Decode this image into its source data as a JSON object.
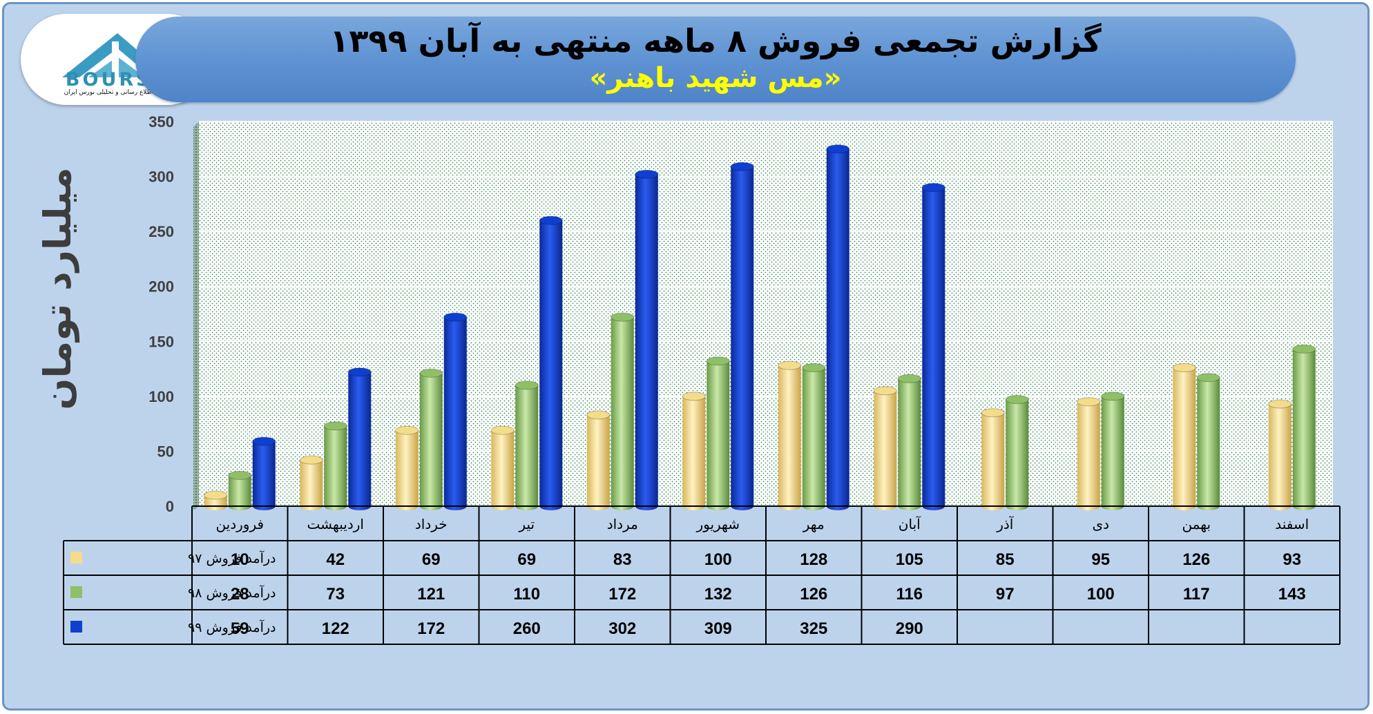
{
  "header": {
    "title": "گزارش تجمعی فروش ۸ ماهه منتهی به آبان ۱۳۹۹",
    "subtitle": "«مس شهید باهنر»"
  },
  "logo": {
    "word": "BOURSE",
    "tagline": "پایگاه اطلاع رسانی و تحلیلی بورس ایران"
  },
  "colors": {
    "series_97": "#f4dc8a",
    "series_98": "#8fbf66",
    "series_99": "#0f3fd0",
    "background": "#bdd3ec",
    "banner": "#5d91d2",
    "subtitle": "#ffff00"
  },
  "chart_data": {
    "type": "bar",
    "title": "گزارش تجمعی فروش ۸ ماهه منتهی به آبان ۱۳۹۹",
    "subtitle": "«مس شهید باهنر»",
    "ylabel": "میلیارد تومان",
    "xlabel": "",
    "ylim": [
      0,
      350
    ],
    "yticks": [
      0,
      50,
      100,
      150,
      200,
      250,
      300,
      350
    ],
    "grid": true,
    "legend_position": "bottom-left (in data table)",
    "categories": [
      "فروردین",
      "اردیبهشت",
      "خرداد",
      "تیر",
      "مرداد",
      "شهریور",
      "مهر",
      "آبان",
      "آذر",
      "دی",
      "بهمن",
      "اسفند"
    ],
    "series": [
      {
        "name": "درآمد فروش ۹۷",
        "color": "#f4dc8a",
        "values": [
          10,
          42,
          69,
          69,
          83,
          100,
          128,
          105,
          85,
          95,
          126,
          93
        ]
      },
      {
        "name": "درآمد فروش ۹۸",
        "color": "#8fbf66",
        "values": [
          28,
          73,
          121,
          110,
          172,
          132,
          126,
          116,
          97,
          100,
          117,
          143
        ]
      },
      {
        "name": "درآمد فروش ۹۹",
        "color": "#0f3fd0",
        "values": [
          59,
          122,
          172,
          260,
          302,
          309,
          325,
          290,
          null,
          null,
          null,
          null
        ]
      }
    ]
  }
}
